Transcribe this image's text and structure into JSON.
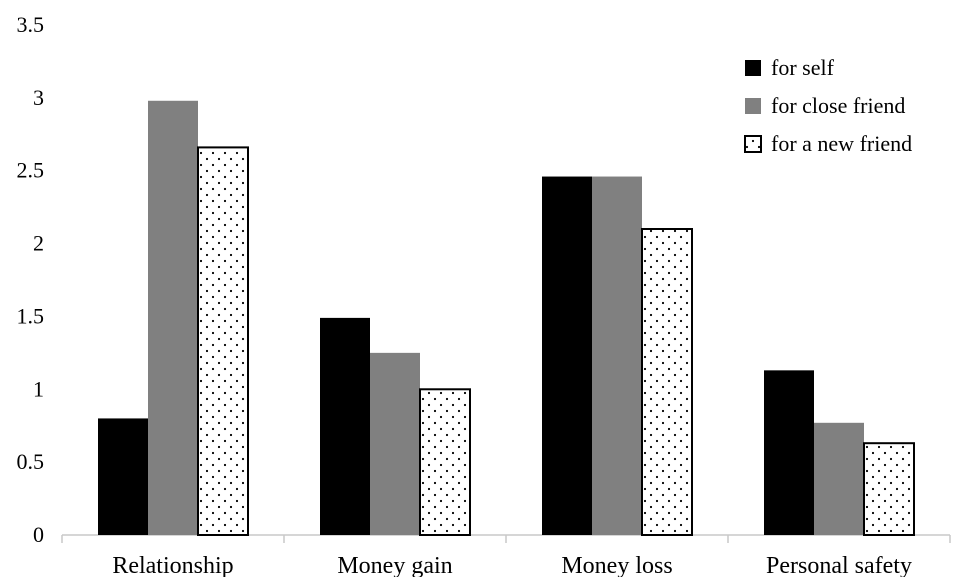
{
  "chart_data": {
    "type": "bar",
    "title": "",
    "xlabel": "",
    "ylabel": "",
    "categories": [
      "Relationship",
      "Money gain",
      "Money loss",
      "Personal safety"
    ],
    "series": [
      {
        "name": "for self",
        "values": [
          0.8,
          1.49,
          2.46,
          1.13
        ],
        "fill": "solid",
        "color": "#000000"
      },
      {
        "name": "for close friend",
        "values": [
          2.98,
          1.25,
          2.46,
          0.77
        ],
        "fill": "solid",
        "color": "#808080"
      },
      {
        "name": "for a new friend",
        "values": [
          2.66,
          1.0,
          2.1,
          0.63
        ],
        "fill": "dotted",
        "color": "#ffffff"
      }
    ],
    "ylim": [
      0,
      3.5
    ],
    "yticks": [
      "0",
      "0.5",
      "1",
      "1.5",
      "2",
      "2.5",
      "3",
      "3.5"
    ],
    "grid": false,
    "legend_position": "top-right"
  }
}
